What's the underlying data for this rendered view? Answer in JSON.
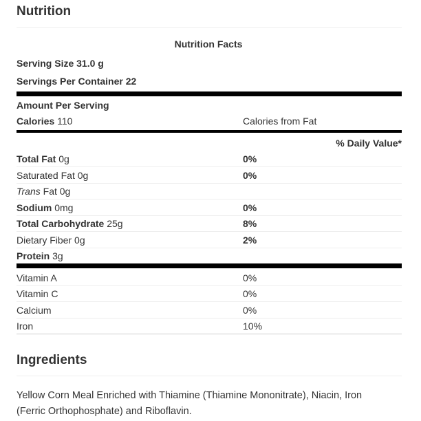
{
  "header": {
    "title": "Nutrition"
  },
  "facts": {
    "title": "Nutrition Facts",
    "serving_size": "Serving Size 31.0 g",
    "servings_per_container": "Servings Per Container 22",
    "amount_per_serving": "Amount Per Serving",
    "calories": {
      "label": "Calories",
      "amount": "110"
    },
    "calories_from_fat": "Calories from Fat",
    "daily_value_header": "% Daily Value*",
    "nutrients": [
      {
        "label": "Total Fat",
        "amount": "0g",
        "dv": "0%"
      },
      {
        "label": "Saturated Fat",
        "amount": "0g",
        "dv": "0%"
      },
      {
        "prefix": "Trans",
        "label": "Fat",
        "amount": "0g"
      },
      {
        "label": "Sodium",
        "amount": "0mg",
        "dv": "0%"
      },
      {
        "label": "Total Carbohydrate",
        "amount": "25g",
        "dv": "8%"
      },
      {
        "label": "Dietary Fiber",
        "amount": "0g",
        "dv": "2%"
      },
      {
        "label": "Protein",
        "amount": "3g"
      }
    ],
    "vitamins": [
      {
        "label": "Vitamin A",
        "dv": "0%"
      },
      {
        "label": "Vitamin C",
        "dv": "0%"
      },
      {
        "label": "Calcium",
        "dv": "0%"
      },
      {
        "label": "Iron",
        "dv": "10%"
      }
    ]
  },
  "ingredients": {
    "title": "Ingredients",
    "lines": [
      "Yellow Corn Meal Enriched with Thiamine (Thiamine Mononitrate), Niacin, Iron",
      "(Ferric Orthophosphate) and Riboflavin."
    ]
  }
}
